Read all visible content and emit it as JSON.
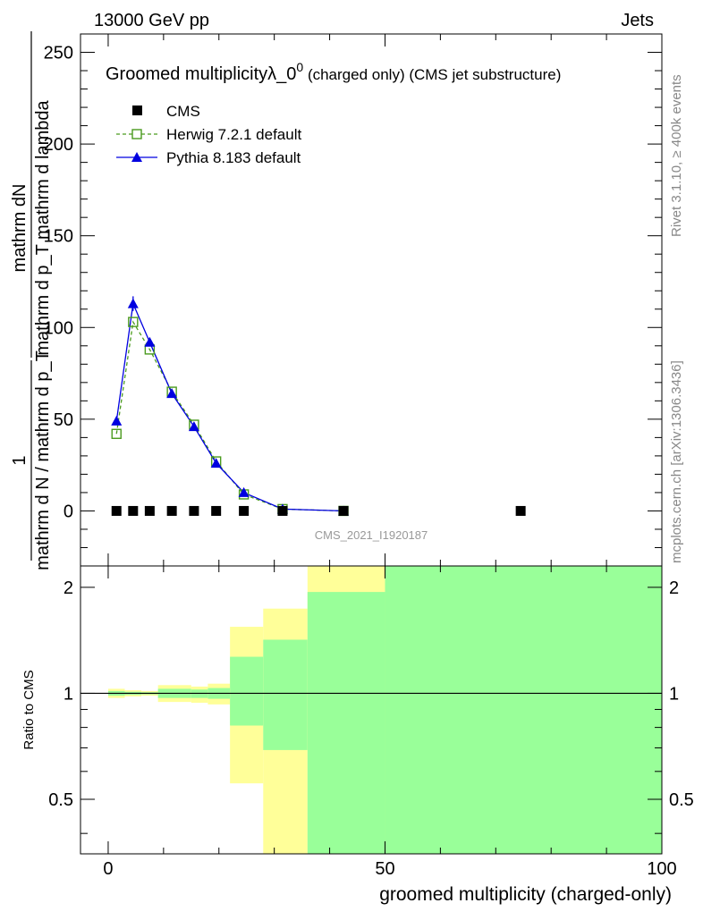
{
  "header": {
    "energy_label": "13000 GeV pp",
    "category_label": "Jets"
  },
  "side_labels": {
    "rivet": "Rivet 3.1.10, ≥ 400k events",
    "mcplots": "mcplots.cern.ch [arXiv:1306.3436]"
  },
  "chart_data": [
    {
      "type": "line",
      "title_main": "Groomed multiplicityλ_0",
      "title_sup": "0",
      "title_tail": " (charged only) (CMS jet substructure)",
      "analysis_id": "CMS_2021_I1920187",
      "ylabel_numerator": "mathrm dN",
      "ylabel_denominator": "mathrm d p_T mathrm d lambda",
      "ylabel_prefix_num": "1",
      "ylabel_prefix_den": "mathrm d N / mathrm d p_T",
      "xlim": [
        -5,
        100
      ],
      "ylim": [
        -30,
        260
      ],
      "yticks": [
        0,
        50,
        100,
        150,
        200,
        250
      ],
      "ytick_labels": [
        "0",
        "50",
        "100",
        "150",
        "200",
        "250"
      ],
      "legend": {
        "position": "top-left",
        "entries": [
          {
            "label": "CMS",
            "marker": "square-filled",
            "color": "#000000"
          },
          {
            "label": "Herwig 7.2.1 default",
            "marker": "square-open",
            "color": "#4a9a1e"
          },
          {
            "label": "Pythia 8.183 default",
            "marker": "triangle",
            "color": "#0000e0"
          }
        ]
      },
      "series": [
        {
          "name": "CMS",
          "x": [
            1.5,
            4.5,
            7.5,
            11.5,
            15.5,
            19.5,
            24.5,
            31.5,
            42.5,
            74.5
          ],
          "y": [
            0,
            0,
            0,
            0,
            0,
            0,
            0,
            0,
            0,
            0
          ]
        },
        {
          "name": "Herwig 7.2.1 default",
          "x": [
            1.5,
            4.5,
            7.5,
            11.5,
            15.5,
            19.5,
            24.5,
            31.5,
            42.5
          ],
          "y": [
            42,
            103,
            88,
            65,
            47,
            27,
            9,
            1,
            0
          ]
        },
        {
          "name": "Pythia 8.183 default",
          "x": [
            1.5,
            4.5,
            7.5,
            11.5,
            15.5,
            19.5,
            24.5,
            31.5,
            42.5
          ],
          "y": [
            49,
            113,
            92,
            64,
            46,
            26,
            10,
            1,
            0
          ],
          "yerr": [
            1,
            4,
            2,
            1,
            1,
            1,
            1,
            0,
            0
          ]
        }
      ]
    },
    {
      "type": "area",
      "ylabel": "Ratio to CMS",
      "xlabel": "groomed multiplicity (charged-only)",
      "xlim": [
        -5,
        100
      ],
      "ylim": [
        0.35,
        2.3
      ],
      "xticks": [
        0,
        50,
        100
      ],
      "xtick_labels": [
        "0",
        "50",
        "100"
      ],
      "yticks": [
        0.5,
        1,
        2
      ],
      "ytick_labels": [
        "0.5",
        "1",
        "2"
      ],
      "reference_line": 1,
      "bands": [
        {
          "x0": 0,
          "x1": 3,
          "yellow": [
            0.97,
            1.03
          ],
          "green": [
            0.985,
            1.015
          ]
        },
        {
          "x0": 3,
          "x1": 6,
          "yellow": [
            0.98,
            1.02
          ],
          "green": [
            0.99,
            1.01
          ]
        },
        {
          "x0": 6,
          "x1": 9,
          "yellow": [
            0.985,
            1.015
          ],
          "green": [
            0.993,
            1.007
          ]
        },
        {
          "x0": 9,
          "x1": 15,
          "yellow": [
            0.945,
            1.055
          ],
          "green": [
            0.97,
            1.03
          ]
        },
        {
          "x0": 15,
          "x1": 18,
          "yellow": [
            0.94,
            1.045
          ],
          "green": [
            0.97,
            1.025
          ]
        },
        {
          "x0": 18,
          "x1": 22,
          "yellow": [
            0.93,
            1.065
          ],
          "green": [
            0.965,
            1.035
          ]
        },
        {
          "x0": 22,
          "x1": 28,
          "yellow": [
            0.555,
            1.545
          ],
          "green": [
            0.81,
            1.27
          ]
        },
        {
          "x0": 28,
          "x1": 36,
          "yellow": [
            0.35,
            1.74
          ],
          "green": [
            0.69,
            1.42
          ]
        },
        {
          "x0": 36,
          "x1": 50,
          "yellow": [
            0.35,
            2.3
          ],
          "green": [
            0.35,
            1.94
          ]
        },
        {
          "x0": 50,
          "x1": 100,
          "yellow": [
            0.35,
            2.3
          ],
          "green": [
            0.35,
            2.3
          ]
        }
      ]
    }
  ]
}
